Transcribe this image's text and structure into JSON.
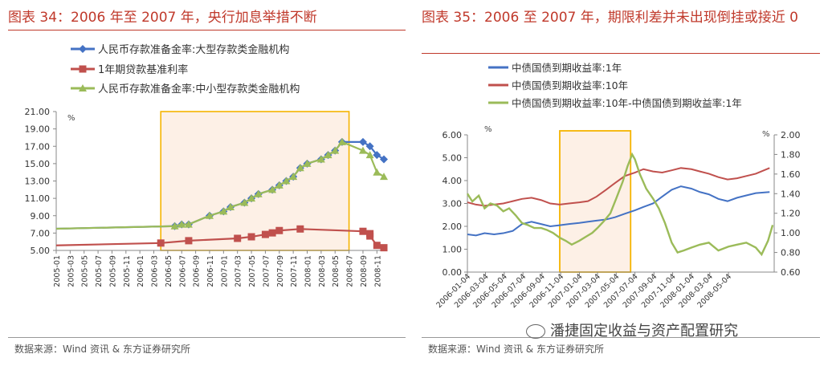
{
  "left": {
    "title": "图表 34：2006 年至 2007 年，央行加息举措不断",
    "source": "数据来源：Wind 资讯 & 东方证券研究所",
    "chart_data": {
      "type": "line",
      "ylabel": "%",
      "ylim": [
        5,
        21
      ],
      "yticks": [
        "21.00",
        "19.00",
        "17.00",
        "15.00",
        "13.00",
        "11.00",
        "9.00",
        "7.00",
        "5.00"
      ],
      "xlim": [
        "2005-01",
        "2008-12"
      ],
      "xticks": [
        "2005-01",
        "2005-03",
        "2005-05",
        "2005-07",
        "2005-09",
        "2005-11",
        "2006-01",
        "2006-03",
        "2006-05",
        "2006-07",
        "2006-09",
        "2006-11",
        "2007-01",
        "2007-03",
        "2007-05",
        "2007-07",
        "2007-09",
        "2007-11",
        "2008-01",
        "2008-03",
        "2008-05",
        "2008-07",
        "2008-09",
        "2008-11"
      ],
      "legend_position": "top-left",
      "highlight_range": [
        "2006-04",
        "2008-07"
      ],
      "series": [
        {
          "name": "人民币存款准备金率:大型存款类金融机构",
          "color": "#4472c4",
          "marker": "diamond",
          "points": [
            [
              "2005-01",
              7.5
            ],
            [
              "2006-06",
              7.8
            ],
            [
              "2006-07",
              8.0
            ],
            [
              "2006-08",
              8.0
            ],
            [
              "2006-11",
              9.0
            ],
            [
              "2007-01",
              9.5
            ],
            [
              "2007-02",
              10.0
            ],
            [
              "2007-04",
              10.5
            ],
            [
              "2007-05",
              11.0
            ],
            [
              "2007-06",
              11.5
            ],
            [
              "2007-08",
              12.0
            ],
            [
              "2007-09",
              12.5
            ],
            [
              "2007-10",
              13.0
            ],
            [
              "2007-11",
              13.5
            ],
            [
              "2007-12",
              14.5
            ],
            [
              "2008-01",
              15.0
            ],
            [
              "2008-03",
              15.5
            ],
            [
              "2008-04",
              16.0
            ],
            [
              "2008-05",
              16.5
            ],
            [
              "2008-06",
              17.5
            ],
            [
              "2008-09",
              17.5
            ],
            [
              "2008-10",
              17.0
            ],
            [
              "2008-11",
              16.0
            ],
            [
              "2008-12",
              15.5
            ]
          ]
        },
        {
          "name": "1年期贷款基准利率",
          "color": "#c0504d",
          "marker": "square",
          "points": [
            [
              "2005-01",
              5.58
            ],
            [
              "2006-04",
              5.85
            ],
            [
              "2006-08",
              6.12
            ],
            [
              "2007-03",
              6.39
            ],
            [
              "2007-05",
              6.57
            ],
            [
              "2007-07",
              6.84
            ],
            [
              "2007-08",
              7.02
            ],
            [
              "2007-09",
              7.29
            ],
            [
              "2007-12",
              7.47
            ],
            [
              "2008-09",
              7.2
            ],
            [
              "2008-10",
              6.93
            ],
            [
              "2008-10",
              6.66
            ],
            [
              "2008-11",
              5.58
            ],
            [
              "2008-12",
              5.31
            ]
          ]
        },
        {
          "name": "人民币存款准备金率:中小型存款类金融机构",
          "color": "#9bbb59",
          "marker": "triangle",
          "points": [
            [
              "2005-01",
              7.5
            ],
            [
              "2006-06",
              7.8
            ],
            [
              "2006-07",
              8.0
            ],
            [
              "2006-08",
              8.0
            ],
            [
              "2006-11",
              9.0
            ],
            [
              "2007-01",
              9.5
            ],
            [
              "2007-02",
              10.0
            ],
            [
              "2007-04",
              10.5
            ],
            [
              "2007-05",
              11.0
            ],
            [
              "2007-06",
              11.5
            ],
            [
              "2007-08",
              12.0
            ],
            [
              "2007-09",
              12.5
            ],
            [
              "2007-10",
              13.0
            ],
            [
              "2007-11",
              13.5
            ],
            [
              "2007-12",
              14.5
            ],
            [
              "2008-01",
              15.0
            ],
            [
              "2008-03",
              15.5
            ],
            [
              "2008-04",
              16.0
            ],
            [
              "2008-05",
              16.5
            ],
            [
              "2008-06",
              17.5
            ],
            [
              "2008-09",
              16.5
            ],
            [
              "2008-10",
              16.0
            ],
            [
              "2008-11",
              14.0
            ],
            [
              "2008-12",
              13.5
            ]
          ]
        }
      ]
    }
  },
  "right": {
    "title": "图表 35：2006 至 2007 年，期限利差并未出现倒挂或接近 0",
    "source": "数据来源：Wind 资讯 & 东方证券研究所",
    "watermark": "潘捷固定收益与资产配置研究",
    "chart_data": {
      "type": "line",
      "ylabel_left": "%",
      "ylabel_right": "%",
      "ylim_left": [
        0,
        6
      ],
      "ylim_right": [
        0.6,
        2.0
      ],
      "yticks_left": [
        "6.00",
        "5.00",
        "4.00",
        "3.00",
        "2.00",
        "1.00",
        "0.00"
      ],
      "yticks_right": [
        "2.00",
        "1.80",
        "1.60",
        "1.40",
        "1.20",
        "1.00",
        "0.80",
        "0.60"
      ],
      "xlim": [
        "2006-01-04",
        "2008-09-30"
      ],
      "xticks": [
        "2006-01-04",
        "2006-03-04",
        "2006-05-04",
        "2006-07-04",
        "2006-09-04",
        "2006-11-04",
        "2007-01-04",
        "2007-03-04",
        "2007-05-04",
        "2007-07-04",
        "2007-09-04",
        "2007-11-04",
        "2008-01-04",
        "2008-03-04",
        "2008-05-04"
      ],
      "legend_position": "top-left",
      "highlight_range": [
        "2006-11-01",
        "2007-06-20"
      ],
      "series": [
        {
          "name": "中债国债到期收益率:1年",
          "color": "#4472c4",
          "axis": "left",
          "points": [
            [
              "2006-01-04",
              1.65
            ],
            [
              "2006-02-01",
              1.6
            ],
            [
              "2006-03-01",
              1.7
            ],
            [
              "2006-04-01",
              1.65
            ],
            [
              "2006-05-01",
              1.7
            ],
            [
              "2006-06-01",
              1.8
            ],
            [
              "2006-07-01",
              2.1
            ],
            [
              "2006-08-01",
              2.2
            ],
            [
              "2006-09-01",
              2.1
            ],
            [
              "2006-10-01",
              2.0
            ],
            [
              "2006-11-01",
              2.05
            ],
            [
              "2006-12-01",
              2.1
            ],
            [
              "2007-01-04",
              2.15
            ],
            [
              "2007-02-01",
              2.2
            ],
            [
              "2007-03-01",
              2.25
            ],
            [
              "2007-04-01",
              2.3
            ],
            [
              "2007-05-01",
              2.4
            ],
            [
              "2007-06-01",
              2.55
            ],
            [
              "2007-07-04",
              2.7
            ],
            [
              "2007-08-01",
              2.85
            ],
            [
              "2007-09-01",
              3.0
            ],
            [
              "2007-10-01",
              3.3
            ],
            [
              "2007-11-01",
              3.6
            ],
            [
              "2007-12-01",
              3.75
            ],
            [
              "2008-01-04",
              3.65
            ],
            [
              "2008-02-01",
              3.5
            ],
            [
              "2008-03-01",
              3.4
            ],
            [
              "2008-04-01",
              3.2
            ],
            [
              "2008-05-01",
              3.1
            ],
            [
              "2008-06-01",
              3.25
            ],
            [
              "2008-07-01",
              3.35
            ],
            [
              "2008-08-01",
              3.45
            ],
            [
              "2008-09-15",
              3.5
            ]
          ]
        },
        {
          "name": "中债国债到期收益率:10年",
          "color": "#c0504d",
          "axis": "left",
          "points": [
            [
              "2006-01-04",
              3.05
            ],
            [
              "2006-02-01",
              2.95
            ],
            [
              "2006-03-01",
              2.9
            ],
            [
              "2006-04-01",
              2.95
            ],
            [
              "2006-05-01",
              3.0
            ],
            [
              "2006-06-01",
              3.1
            ],
            [
              "2006-07-01",
              3.2
            ],
            [
              "2006-08-01",
              3.25
            ],
            [
              "2006-09-01",
              3.15
            ],
            [
              "2006-10-01",
              3.0
            ],
            [
              "2006-11-01",
              2.95
            ],
            [
              "2006-12-01",
              3.0
            ],
            [
              "2007-01-04",
              3.05
            ],
            [
              "2007-02-01",
              3.1
            ],
            [
              "2007-03-01",
              3.3
            ],
            [
              "2007-04-01",
              3.6
            ],
            [
              "2007-05-01",
              3.9
            ],
            [
              "2007-06-01",
              4.2
            ],
            [
              "2007-07-04",
              4.35
            ],
            [
              "2007-08-01",
              4.5
            ],
            [
              "2007-09-01",
              4.4
            ],
            [
              "2007-10-01",
              4.35
            ],
            [
              "2007-11-01",
              4.45
            ],
            [
              "2007-12-01",
              4.55
            ],
            [
              "2008-01-04",
              4.5
            ],
            [
              "2008-02-01",
              4.4
            ],
            [
              "2008-03-01",
              4.3
            ],
            [
              "2008-04-01",
              4.15
            ],
            [
              "2008-05-01",
              4.05
            ],
            [
              "2008-06-01",
              4.1
            ],
            [
              "2008-07-01",
              4.2
            ],
            [
              "2008-08-01",
              4.3
            ],
            [
              "2008-09-15",
              4.55
            ]
          ]
        },
        {
          "name": "中债国债到期收益率:10年-中债国债到期收益率:1年",
          "color": "#9bbb59",
          "axis": "right",
          "points": [
            [
              "2006-01-04",
              1.4
            ],
            [
              "2006-01-20",
              1.32
            ],
            [
              "2006-02-10",
              1.38
            ],
            [
              "2006-03-01",
              1.25
            ],
            [
              "2006-03-20",
              1.3
            ],
            [
              "2006-04-10",
              1.28
            ],
            [
              "2006-05-01",
              1.22
            ],
            [
              "2006-05-20",
              1.25
            ],
            [
              "2006-06-10",
              1.18
            ],
            [
              "2006-07-01",
              1.1
            ],
            [
              "2006-07-20",
              1.08
            ],
            [
              "2006-08-10",
              1.05
            ],
            [
              "2006-09-01",
              1.05
            ],
            [
              "2006-09-20",
              1.03
            ],
            [
              "2006-10-10",
              1.0
            ],
            [
              "2006-11-01",
              0.95
            ],
            [
              "2006-11-20",
              0.92
            ],
            [
              "2006-12-10",
              0.88
            ],
            [
              "2007-01-04",
              0.92
            ],
            [
              "2007-01-25",
              0.96
            ],
            [
              "2007-02-15",
              1.0
            ],
            [
              "2007-03-04",
              1.05
            ],
            [
              "2007-03-25",
              1.12
            ],
            [
              "2007-04-15",
              1.2
            ],
            [
              "2007-05-04",
              1.35
            ],
            [
              "2007-05-25",
              1.52
            ],
            [
              "2007-06-10",
              1.68
            ],
            [
              "2007-06-25",
              1.8
            ],
            [
              "2007-07-04",
              1.75
            ],
            [
              "2007-07-20",
              1.6
            ],
            [
              "2007-08-10",
              1.45
            ],
            [
              "2007-09-01",
              1.35
            ],
            [
              "2007-09-20",
              1.25
            ],
            [
              "2007-10-10",
              1.1
            ],
            [
              "2007-11-01",
              0.9
            ],
            [
              "2007-11-20",
              0.8
            ],
            [
              "2007-12-10",
              0.82
            ],
            [
              "2008-01-04",
              0.85
            ],
            [
              "2008-02-01",
              0.88
            ],
            [
              "2008-03-01",
              0.9
            ],
            [
              "2008-04-01",
              0.82
            ],
            [
              "2008-05-04",
              0.86
            ],
            [
              "2008-06-01",
              0.88
            ],
            [
              "2008-07-01",
              0.9
            ],
            [
              "2008-08-01",
              0.85
            ],
            [
              "2008-08-20",
              0.78
            ],
            [
              "2008-09-10",
              0.92
            ],
            [
              "2008-09-25",
              1.08
            ]
          ]
        }
      ]
    }
  }
}
